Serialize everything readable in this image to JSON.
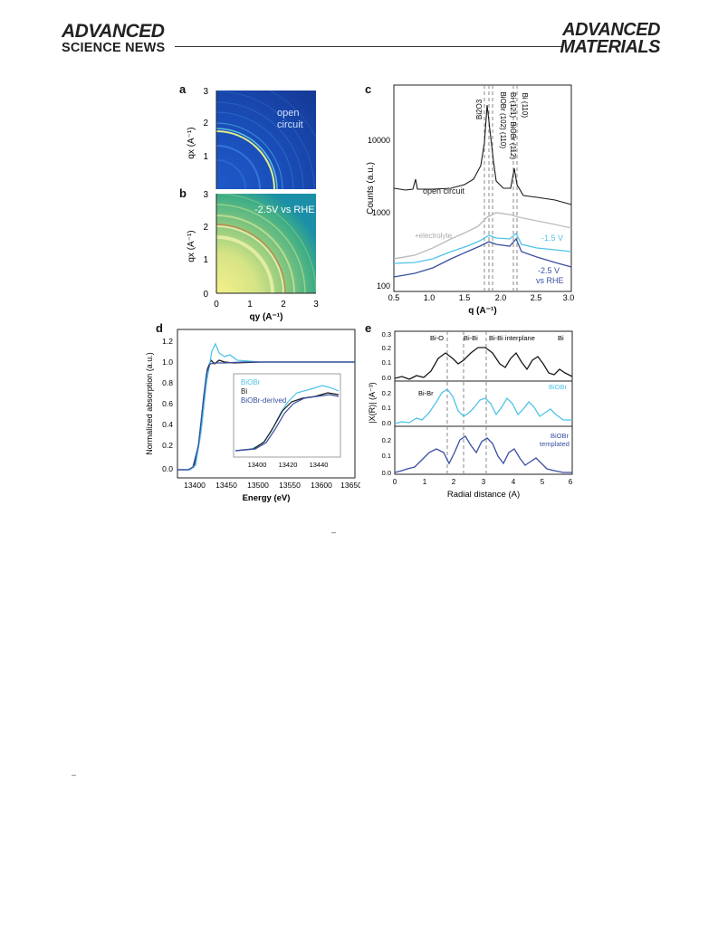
{
  "header": {
    "left_logo_line1": "ADVANCED",
    "left_logo_line2": "SCIENCE NEWS",
    "right_logo_line1": "ADVANCED",
    "right_logo_line2": "MATERIALS"
  },
  "panels": {
    "a": {
      "label": "a",
      "annotation_line1": "open",
      "annotation_line2": "circuit",
      "y_axis_label": "qx (A⁻¹)",
      "y_ticks": [
        "3",
        "2",
        "1"
      ]
    },
    "b": {
      "label": "b",
      "annotation": "-2.5V vs RHE",
      "y_axis_label": "qx (A⁻¹)",
      "x_axis_label": "qy (A⁻¹)",
      "y_ticks": [
        "3",
        "2",
        "1",
        "0"
      ],
      "x_ticks": [
        "0",
        "1",
        "2",
        "3"
      ]
    },
    "c": {
      "label": "c",
      "y_axis_label": "Counts (a.u.)",
      "x_axis_label": "q (A⁻¹)",
      "y_ticks": [
        "10000",
        "1000",
        "100"
      ],
      "x_ticks": [
        "0.5",
        "1.0",
        "1.5",
        "2.0",
        "2.5",
        "3.0"
      ],
      "peak_labels": [
        "Bi2O3",
        "BiOBr (102) (110)",
        "Bi (121)",
        "BiOBr (112)",
        "Bi (110)"
      ],
      "curve_labels": [
        "open circuit",
        "+electrolyte",
        "-1.5 V",
        "-2.5 V",
        "vs RHE"
      ]
    },
    "d": {
      "label": "d",
      "y_axis_label": "Normalized absorption (a.u.)",
      "x_axis_label": "Energy (eV)",
      "y_ticks": [
        "1.2",
        "1.0",
        "0.8",
        "0.6",
        "0.4",
        "0.2",
        "0.0"
      ],
      "x_ticks": [
        "13400",
        "13450",
        "13500",
        "13550",
        "13600",
        "13650"
      ],
      "inset_x_ticks": [
        "13400",
        "13420",
        "13440"
      ],
      "legend": [
        "BiOBr",
        "Bi",
        "BiOBr-derived"
      ]
    },
    "e": {
      "label": "e",
      "y_axis_label": "|X(R)| (A⁻³)",
      "x_axis_label": "Radial distance (A)",
      "x_ticks": [
        "0",
        "1",
        "2",
        "3",
        "4",
        "5",
        "6"
      ],
      "y_ticks_top": [
        "0.3",
        "0.2",
        "0.1",
        "0.0"
      ],
      "y_ticks_mid": [
        "0.2",
        "0.1",
        "0.0"
      ],
      "y_ticks_bot": [
        "0.2",
        "0.1",
        "0.0"
      ],
      "annotations_top": [
        "Bi-O",
        "Bi-Bi",
        "Bi-Bi interplane",
        "Bi"
      ],
      "annotations_mid": [
        "Bi-Br",
        "BiOBr"
      ],
      "annotations_bot": [
        "BiOBr",
        "templated"
      ]
    }
  },
  "stray_marks": [
    "–",
    "–"
  ],
  "colors": {
    "black": "#1a1a1a",
    "cyan": "#4fc3e8",
    "navy": "#3a4fa0",
    "grey": "#bdbdbd",
    "dashed": "#888888"
  }
}
